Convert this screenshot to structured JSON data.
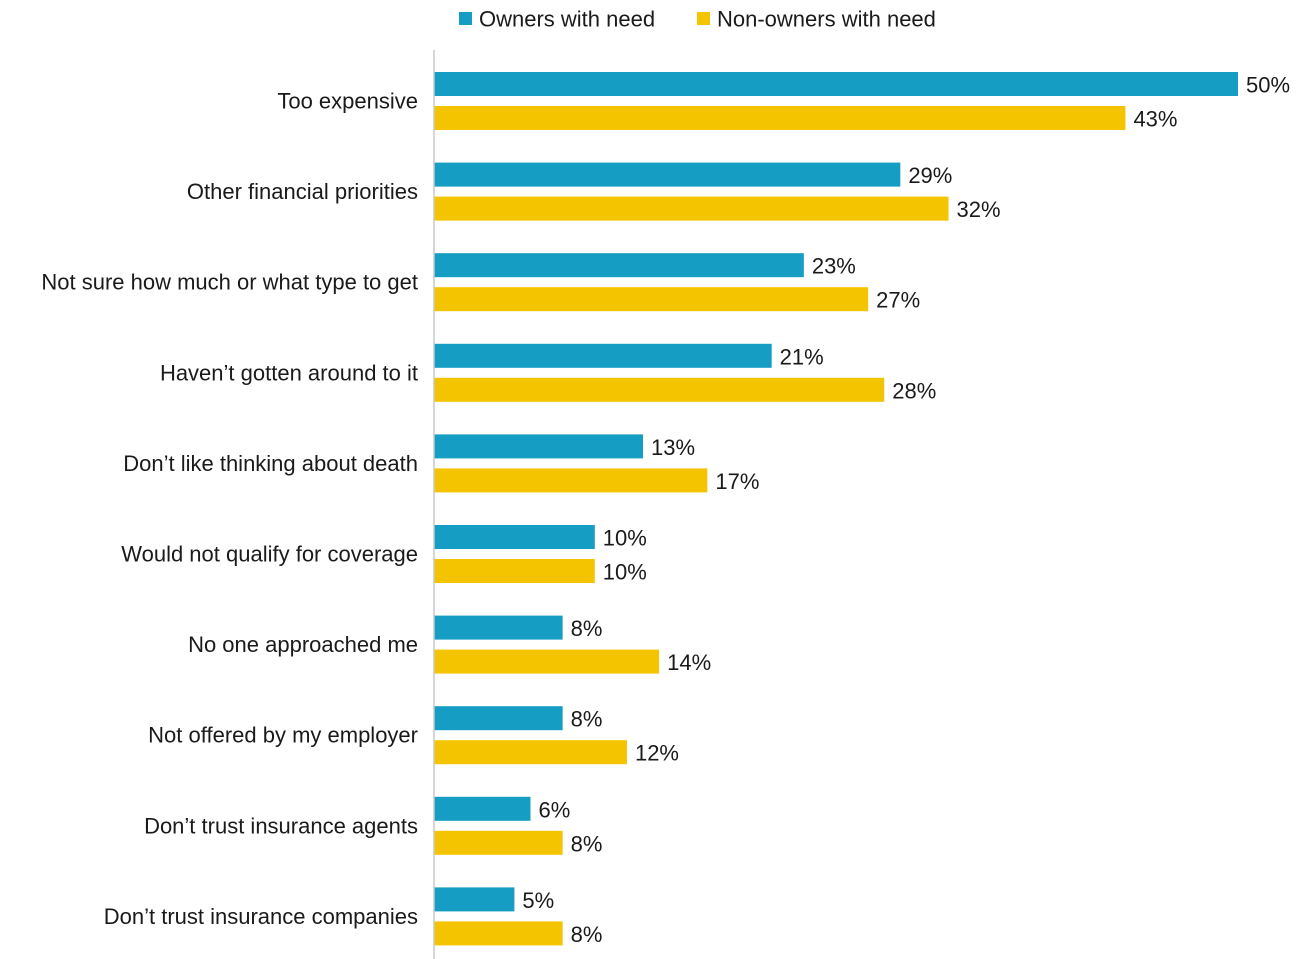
{
  "chart_data": {
    "type": "bar",
    "orientation": "horizontal",
    "categories": [
      "Too expensive",
      "Other financial priorities",
      "Not sure how much or what type to get",
      "Haven’t gotten around to it",
      "Don’t like thinking about death",
      "Would not qualify for coverage",
      "No one approached me",
      "Not offered by my employer",
      "Don’t trust insurance agents",
      "Don’t trust insurance companies"
    ],
    "series": [
      {
        "name": "Owners with need",
        "color": "#169dc3",
        "values": [
          50,
          29,
          23,
          21,
          13,
          10,
          8,
          8,
          6,
          5
        ],
        "labels": [
          "50%",
          "29%",
          "23%",
          "21%",
          "13%",
          "10%",
          "8%",
          "8%",
          "6%",
          "5%"
        ]
      },
      {
        "name": "Non-owners with need",
        "color": "#f5c400",
        "values": [
          43,
          32,
          27,
          28,
          17,
          10,
          14,
          12,
          8,
          8
        ],
        "labels": [
          "43%",
          "32%",
          "27%",
          "28%",
          "17%",
          "10%",
          "14%",
          "12%",
          "8%",
          "8%"
        ]
      }
    ],
    "xlim": [
      0,
      50
    ],
    "legend": "top-center",
    "grid": false,
    "title": "",
    "xlabel": "",
    "ylabel": ""
  }
}
